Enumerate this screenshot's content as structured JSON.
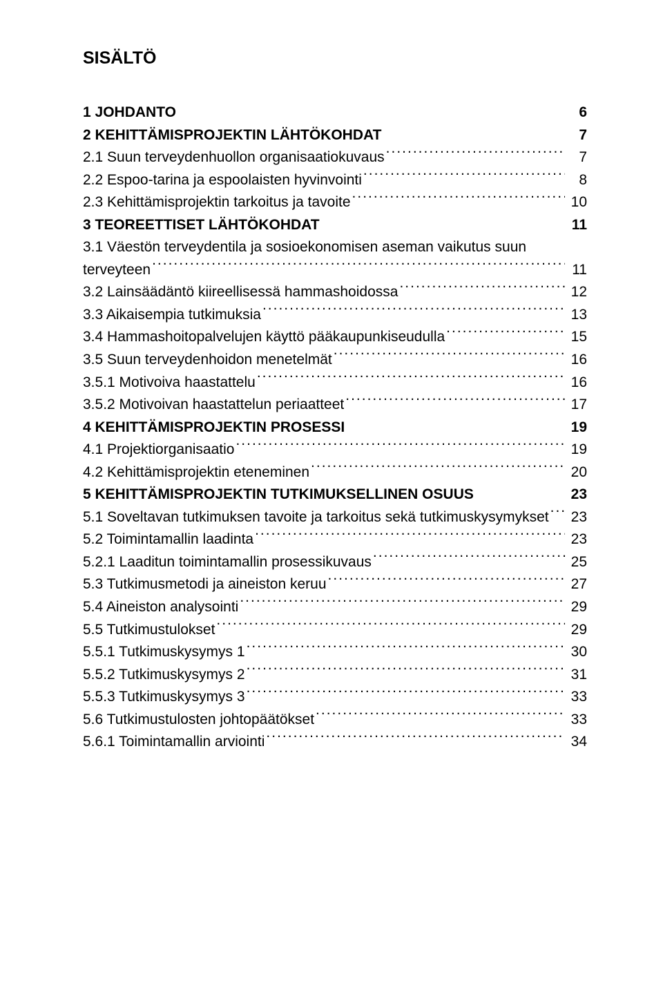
{
  "title": "SISÄLTÖ",
  "entries": [
    {
      "label": "1 JOHDANTO",
      "page": "6",
      "bold": true,
      "leader": false
    },
    {
      "label": "2 KEHITTÄMISPROJEKTIN LÄHTÖKOHDAT",
      "page": "7",
      "bold": true,
      "leader": false
    },
    {
      "label": "2.1 Suun terveydenhuollon organisaatiokuvaus",
      "page": "7",
      "bold": false,
      "leader": true
    },
    {
      "label": "2.2 Espoo-tarina ja espoolaisten hyvinvointi",
      "page": "8",
      "bold": false,
      "leader": true
    },
    {
      "label": "2.3 Kehittämisprojektin tarkoitus ja tavoite",
      "page": "10",
      "bold": false,
      "leader": true
    },
    {
      "label": "3 TEOREETTISET LÄHTÖKOHDAT",
      "page": "11",
      "bold": true,
      "leader": false
    },
    {
      "label": "3.1 Väestön terveydentila ja sosioekonomisen aseman vaikutus suun",
      "page": "",
      "bold": false,
      "leader": false,
      "nopage": true
    },
    {
      "label": "terveyteen",
      "page": "11",
      "bold": false,
      "leader": true
    },
    {
      "label": "3.2 Lainsäädäntö kiireellisessä hammashoidossa",
      "page": "12",
      "bold": false,
      "leader": true
    },
    {
      "label": "3.3 Aikaisempia tutkimuksia",
      "page": "13",
      "bold": false,
      "leader": true
    },
    {
      "label": "3.4 Hammashoitopalvelujen käyttö pääkaupunkiseudulla",
      "page": "15",
      "bold": false,
      "leader": true
    },
    {
      "label": "3.5 Suun terveydenhoidon menetelmät",
      "page": "16",
      "bold": false,
      "leader": true
    },
    {
      "label": "3.5.1 Motivoiva haastattelu",
      "page": "16",
      "bold": false,
      "leader": true
    },
    {
      "label": "3.5.2 Motivoivan haastattelun periaatteet",
      "page": "17",
      "bold": false,
      "leader": true
    },
    {
      "label": "4 KEHITTÄMISPROJEKTIN PROSESSI",
      "page": "19",
      "bold": true,
      "leader": false
    },
    {
      "label": "4.1 Projektiorganisaatio",
      "page": "19",
      "bold": false,
      "leader": true
    },
    {
      "label": "4.2 Kehittämisprojektin eteneminen",
      "page": "20",
      "bold": false,
      "leader": true
    },
    {
      "label": "5 KEHITTÄMISPROJEKTIN TUTKIMUKSELLINEN OSUUS",
      "page": "23",
      "bold": true,
      "leader": false
    },
    {
      "label": "5.1 Soveltavan tutkimuksen tavoite ja tarkoitus sekä tutkimuskysymykset",
      "page": "23",
      "bold": false,
      "leader": true
    },
    {
      "label": "5.2 Toimintamallin laadinta",
      "page": "23",
      "bold": false,
      "leader": true
    },
    {
      "label": "5.2.1 Laaditun toimintamallin prosessikuvaus",
      "page": "25",
      "bold": false,
      "leader": true
    },
    {
      "label": "5.3 Tutkimusmetodi ja aineiston keruu",
      "page": "27",
      "bold": false,
      "leader": true
    },
    {
      "label": "5.4 Aineiston analysointi",
      "page": "29",
      "bold": false,
      "leader": true
    },
    {
      "label": "5.5 Tutkimustulokset",
      "page": "29",
      "bold": false,
      "leader": true
    },
    {
      "label": "5.5.1 Tutkimuskysymys 1",
      "page": "30",
      "bold": false,
      "leader": true
    },
    {
      "label": "5.5.2 Tutkimuskysymys 2",
      "page": "31",
      "bold": false,
      "leader": true
    },
    {
      "label": "5.5.3 Tutkimuskysymys 3",
      "page": "33",
      "bold": false,
      "leader": true
    },
    {
      "label": "5.6 Tutkimustulosten johtopäätökset",
      "page": "33",
      "bold": false,
      "leader": true
    },
    {
      "label": "5.6.1 Toimintamallin arviointi",
      "page": "34",
      "bold": false,
      "leader": true
    }
  ]
}
